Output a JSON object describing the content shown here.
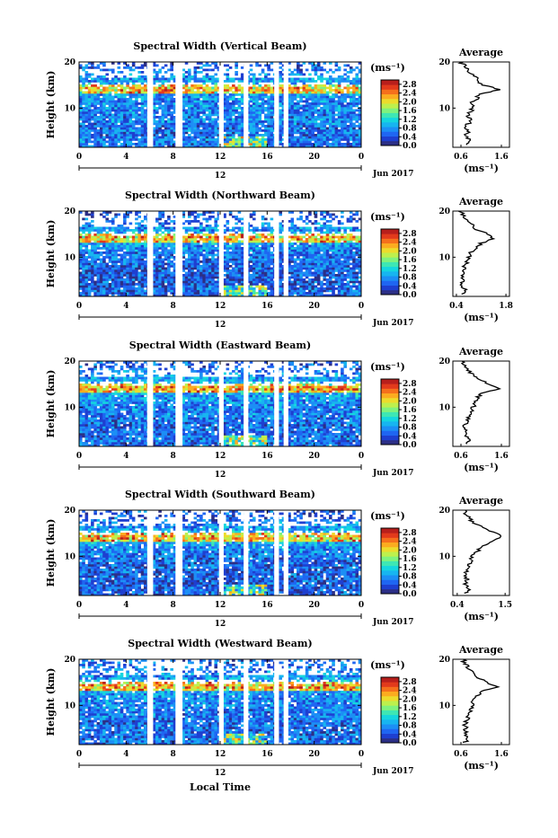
{
  "footer_xlabel": "Local Time",
  "date_label": "Jun 2017",
  "day_label": "12",
  "unit_label": "(ms⁻¹)",
  "avg_title": "Average",
  "avg_xlabel": "(ms⁻¹)",
  "colorbar_ticks": [
    "0.0",
    "0.4",
    "0.8",
    "1.2",
    "1.6",
    "2.0",
    "2.4",
    "2.8"
  ],
  "colormap": [
    "#2c2f86",
    "#1e3fd0",
    "#1f66f2",
    "#1c8ff5",
    "#17b5f0",
    "#15d6df",
    "#3ee7b4",
    "#7ff27e",
    "#bdf04d",
    "#ecdc2c",
    "#fbac20",
    "#f5701c",
    "#e23a1c",
    "#b81f1c"
  ],
  "chart_data": [
    {
      "type": "heatmap",
      "title": "Spectral Width (Vertical Beam)",
      "ylabel": "Height (km)",
      "xlim": [
        0,
        24
      ],
      "ylim": [
        1.5,
        20
      ],
      "x_ticks": [
        "0",
        "4",
        "8",
        "12",
        "16",
        "20",
        "0"
      ],
      "y_ticks": [
        "10",
        "20"
      ],
      "data_gaps_hours": [
        [
          5.8,
          6.3
        ],
        [
          8.2,
          8.8
        ],
        [
          11.9,
          12.3
        ],
        [
          14.0,
          14.4
        ],
        [
          16.6,
          17.0
        ],
        [
          17.4,
          17.8
        ]
      ],
      "average_profile": {
        "title": "Average",
        "x_ticks": [
          "0.6",
          "1.6"
        ],
        "xlim": [
          0.4,
          1.8
        ],
        "height": [
          2,
          3,
          4,
          5,
          6,
          7,
          8,
          9,
          10,
          11,
          12,
          13,
          14,
          15,
          16,
          17,
          18,
          19,
          20
        ],
        "value": [
          0.75,
          0.85,
          0.72,
          0.8,
          0.7,
          0.85,
          0.78,
          0.82,
          0.9,
          0.85,
          1.0,
          1.05,
          1.55,
          1.15,
          1.0,
          0.95,
          0.8,
          0.7,
          0.6
        ]
      }
    },
    {
      "type": "heatmap",
      "title": "Spectral Width (Northward Beam)",
      "ylabel": "Height (km)",
      "xlim": [
        0,
        24
      ],
      "ylim": [
        1.5,
        20
      ],
      "x_ticks": [
        "0",
        "4",
        "8",
        "12",
        "16",
        "20",
        "0"
      ],
      "y_ticks": [
        "10",
        "20"
      ],
      "data_gaps_hours": [
        [
          5.8,
          6.3
        ],
        [
          8.2,
          8.8
        ],
        [
          11.9,
          12.3
        ],
        [
          14.0,
          14.4
        ],
        [
          16.6,
          17.0
        ],
        [
          17.4,
          17.8
        ]
      ],
      "average_profile": {
        "title": "Average",
        "x_ticks": [
          "0.4",
          "1.8"
        ],
        "xlim": [
          0.3,
          1.9
        ],
        "height": [
          2,
          3,
          4,
          5,
          6,
          7,
          8,
          9,
          10,
          11,
          12,
          13,
          14,
          15,
          16,
          17,
          18,
          19,
          20
        ],
        "value": [
          0.6,
          0.65,
          0.55,
          0.6,
          0.55,
          0.6,
          0.62,
          0.7,
          0.75,
          0.8,
          0.95,
          1.1,
          1.45,
          1.3,
          0.95,
          0.85,
          0.7,
          0.6,
          0.5
        ]
      }
    },
    {
      "type": "heatmap",
      "title": "Spectral Width (Eastward Beam)",
      "ylabel": "Height (km)",
      "xlim": [
        0,
        24
      ],
      "ylim": [
        1.5,
        20
      ],
      "x_ticks": [
        "0",
        "4",
        "8",
        "12",
        "16",
        "20",
        "0"
      ],
      "y_ticks": [
        "10",
        "20"
      ],
      "data_gaps_hours": [
        [
          5.8,
          6.3
        ],
        [
          8.2,
          8.8
        ],
        [
          11.9,
          12.3
        ],
        [
          14.0,
          14.4
        ],
        [
          16.6,
          17.0
        ],
        [
          17.4,
          17.8
        ]
      ],
      "average_profile": {
        "title": "Average",
        "x_ticks": [
          "0.6",
          "1.6"
        ],
        "xlim": [
          0.4,
          1.8
        ],
        "height": [
          2,
          3,
          4,
          5,
          6,
          7,
          8,
          9,
          10,
          11,
          12,
          13,
          14,
          15,
          16,
          17,
          18,
          19,
          20
        ],
        "value": [
          0.7,
          0.8,
          0.72,
          0.75,
          0.7,
          0.78,
          0.8,
          0.85,
          0.9,
          0.95,
          1.0,
          1.1,
          1.6,
          1.3,
          1.05,
          0.9,
          0.8,
          0.7,
          0.65
        ]
      }
    },
    {
      "type": "heatmap",
      "title": "Spectral Width (Southward Beam)",
      "ylabel": "Height (km)",
      "xlim": [
        0,
        24
      ],
      "ylim": [
        1.5,
        20
      ],
      "x_ticks": [
        "0",
        "4",
        "8",
        "12",
        "16",
        "20",
        "0"
      ],
      "y_ticks": [
        "10",
        "20"
      ],
      "data_gaps_hours": [
        [
          5.8,
          6.3
        ],
        [
          8.2,
          8.8
        ],
        [
          11.9,
          12.3
        ],
        [
          14.0,
          14.4
        ],
        [
          16.6,
          17.0
        ],
        [
          17.4,
          17.8
        ]
      ],
      "average_profile": {
        "title": "Average",
        "x_ticks": [
          "0.4",
          "1.5"
        ],
        "xlim": [
          0.3,
          1.6
        ],
        "height": [
          2,
          3,
          4,
          5,
          6,
          7,
          8,
          9,
          10,
          11,
          12,
          13,
          14,
          15,
          16,
          17,
          18,
          19,
          20
        ],
        "value": [
          0.6,
          0.65,
          0.6,
          0.62,
          0.58,
          0.65,
          0.68,
          0.7,
          0.75,
          0.85,
          0.95,
          1.2,
          1.4,
          1.3,
          1.0,
          0.85,
          0.7,
          0.6,
          0.55
        ]
      }
    },
    {
      "type": "heatmap",
      "title": "Spectral Width (Westward Beam)",
      "ylabel": "Height (km)",
      "xlim": [
        0,
        24
      ],
      "ylim": [
        1.5,
        20
      ],
      "x_ticks": [
        "0",
        "4",
        "8",
        "12",
        "16",
        "20",
        "0"
      ],
      "y_ticks": [
        "10",
        "20"
      ],
      "data_gaps_hours": [
        [
          5.8,
          6.3
        ],
        [
          8.2,
          8.8
        ],
        [
          11.9,
          12.3
        ],
        [
          14.0,
          14.4
        ],
        [
          16.6,
          17.0
        ],
        [
          17.4,
          17.8
        ]
      ],
      "average_profile": {
        "title": "Average",
        "x_ticks": [
          "0.6",
          "1.6"
        ],
        "xlim": [
          0.4,
          1.8
        ],
        "height": [
          2,
          3,
          4,
          5,
          6,
          7,
          8,
          9,
          10,
          11,
          12,
          13,
          14,
          15,
          16,
          17,
          18,
          19,
          20
        ],
        "value": [
          0.7,
          0.78,
          0.7,
          0.72,
          0.7,
          0.76,
          0.8,
          0.82,
          0.88,
          0.9,
          1.0,
          1.1,
          1.55,
          1.25,
          1.0,
          0.9,
          0.78,
          0.7,
          0.65
        ]
      }
    }
  ]
}
